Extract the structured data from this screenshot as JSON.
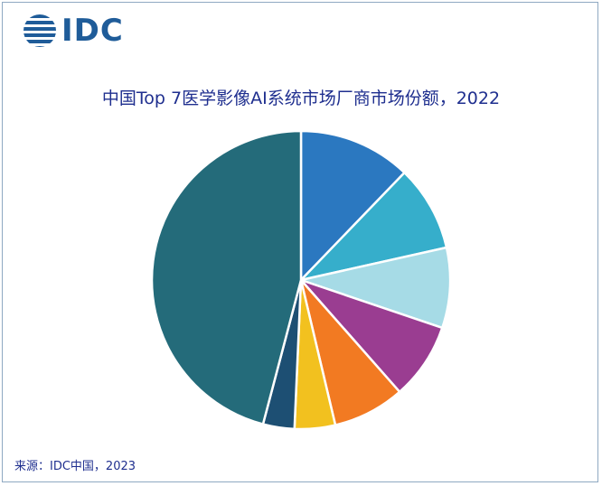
{
  "logo": {
    "text": "IDC",
    "color": "#1f5c99"
  },
  "chart_data": {
    "type": "pie",
    "title": "中国Top 7医学影像AI系统市场厂商市场份额，2022",
    "start": "12 o'clock",
    "direction": "clockwise",
    "slice_border": "#ffffff",
    "slices": [
      {
        "value": 12.2,
        "color": "#2b78c0"
      },
      {
        "value": 9.3,
        "color": "#36aecb"
      },
      {
        "value": 8.7,
        "color": "#a6dbe6"
      },
      {
        "value": 8.3,
        "color": "#9a3d91"
      },
      {
        "value": 7.8,
        "color": "#f27a22"
      },
      {
        "value": 4.4,
        "color": "#f2c11f"
      },
      {
        "value": 3.4,
        "color": "#1d4f73"
      },
      {
        "value": 45.9,
        "color": "#246b7a"
      }
    ]
  },
  "source": "来源：IDC中国，2023"
}
